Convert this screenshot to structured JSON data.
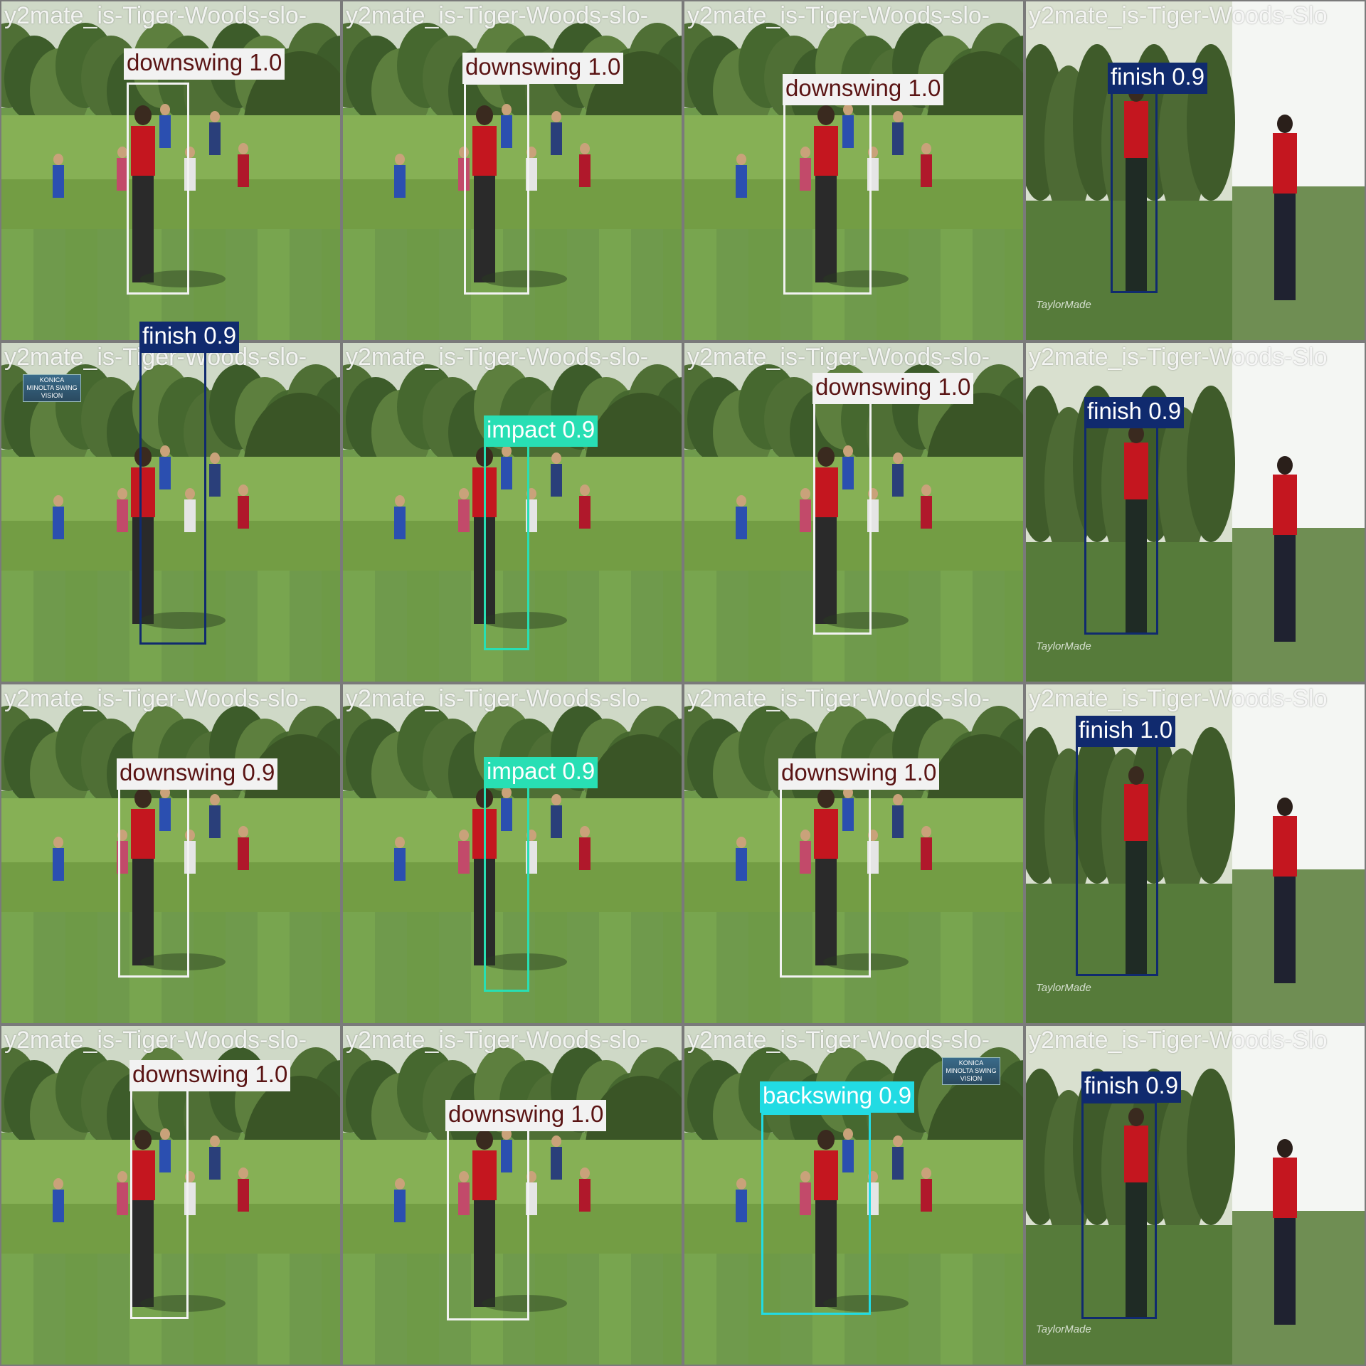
{
  "colors": {
    "downswing_box": "#f2f2f2",
    "downswing_text": "#5a1414",
    "finish": "#102a6e",
    "impact": "#28dfb4",
    "backswing": "#22dbe3"
  },
  "tiles": [
    {
      "filename": "y2mate_is-Tiger-Woods-slo-",
      "scene": "course",
      "detection": {
        "label": "downswing 1.0",
        "class": "downswing"
      }
    },
    {
      "filename": "y2mate_is-Tiger-Woods-slo-",
      "scene": "course",
      "detection": {
        "label": "downswing 1.0",
        "class": "downswing"
      }
    },
    {
      "filename": "y2mate_is-Tiger-Woods-slo-",
      "scene": "course",
      "detection": {
        "label": "downswing 1.0",
        "class": "downswing"
      }
    },
    {
      "filename": "y2mate_is-Tiger-Woods-Slo",
      "scene": "split",
      "watermark": "TaylorMade",
      "detection": {
        "label": "finish 0.9",
        "class": "finish"
      }
    },
    {
      "filename": "y2mate_is-Tiger-Woods-slo-",
      "scene": "course",
      "logo": "KONICA MINOLTA SWING VISION",
      "detection": {
        "label": "finish 0.9",
        "class": "finish"
      }
    },
    {
      "filename": "y2mate_is-Tiger-Woods-slo-",
      "scene": "course",
      "detection": {
        "label": "impact 0.9",
        "class": "impact"
      }
    },
    {
      "filename": "y2mate_is-Tiger-Woods-slo-",
      "scene": "course",
      "detection": {
        "label": "downswing 1.0",
        "class": "downswing"
      }
    },
    {
      "filename": "y2mate_is-Tiger-Woods-Slo",
      "scene": "split",
      "watermark": "TaylorMade",
      "detection": {
        "label": "finish 0.9",
        "class": "finish"
      }
    },
    {
      "filename": "y2mate_is-Tiger-Woods-slo-",
      "scene": "course",
      "detection": {
        "label": "downswing 0.9",
        "class": "downswing"
      }
    },
    {
      "filename": "y2mate_is-Tiger-Woods-slo-",
      "scene": "course",
      "detection": {
        "label": "impact 0.9",
        "class": "impact"
      }
    },
    {
      "filename": "y2mate_is-Tiger-Woods-slo-",
      "scene": "course",
      "detection": {
        "label": "downswing 1.0",
        "class": "downswing"
      }
    },
    {
      "filename": "y2mate_is-Tiger-Woods-Slo",
      "scene": "split",
      "watermark": "TaylorMade",
      "detection": {
        "label": "finish 1.0",
        "class": "finish"
      }
    },
    {
      "filename": "y2mate_is-Tiger-Woods-slo-",
      "scene": "course",
      "detection": {
        "label": "downswing 1.0",
        "class": "downswing"
      }
    },
    {
      "filename": "y2mate_is-Tiger-Woods-slo-",
      "scene": "course",
      "detection": {
        "label": "downswing 1.0",
        "class": "downswing"
      }
    },
    {
      "filename": "y2mate_is-Tiger-Woods-slo-",
      "scene": "course",
      "logo": "KONICA MINOLTA SWING VISION",
      "detection": {
        "label": "backswing 0.9",
        "class": "backswing"
      }
    },
    {
      "filename": "y2mate_is-Tiger-Woods-Slo",
      "scene": "split",
      "watermark": "TaylorMade",
      "detection": {
        "label": "finish 0.9",
        "class": "finish"
      }
    }
  ]
}
